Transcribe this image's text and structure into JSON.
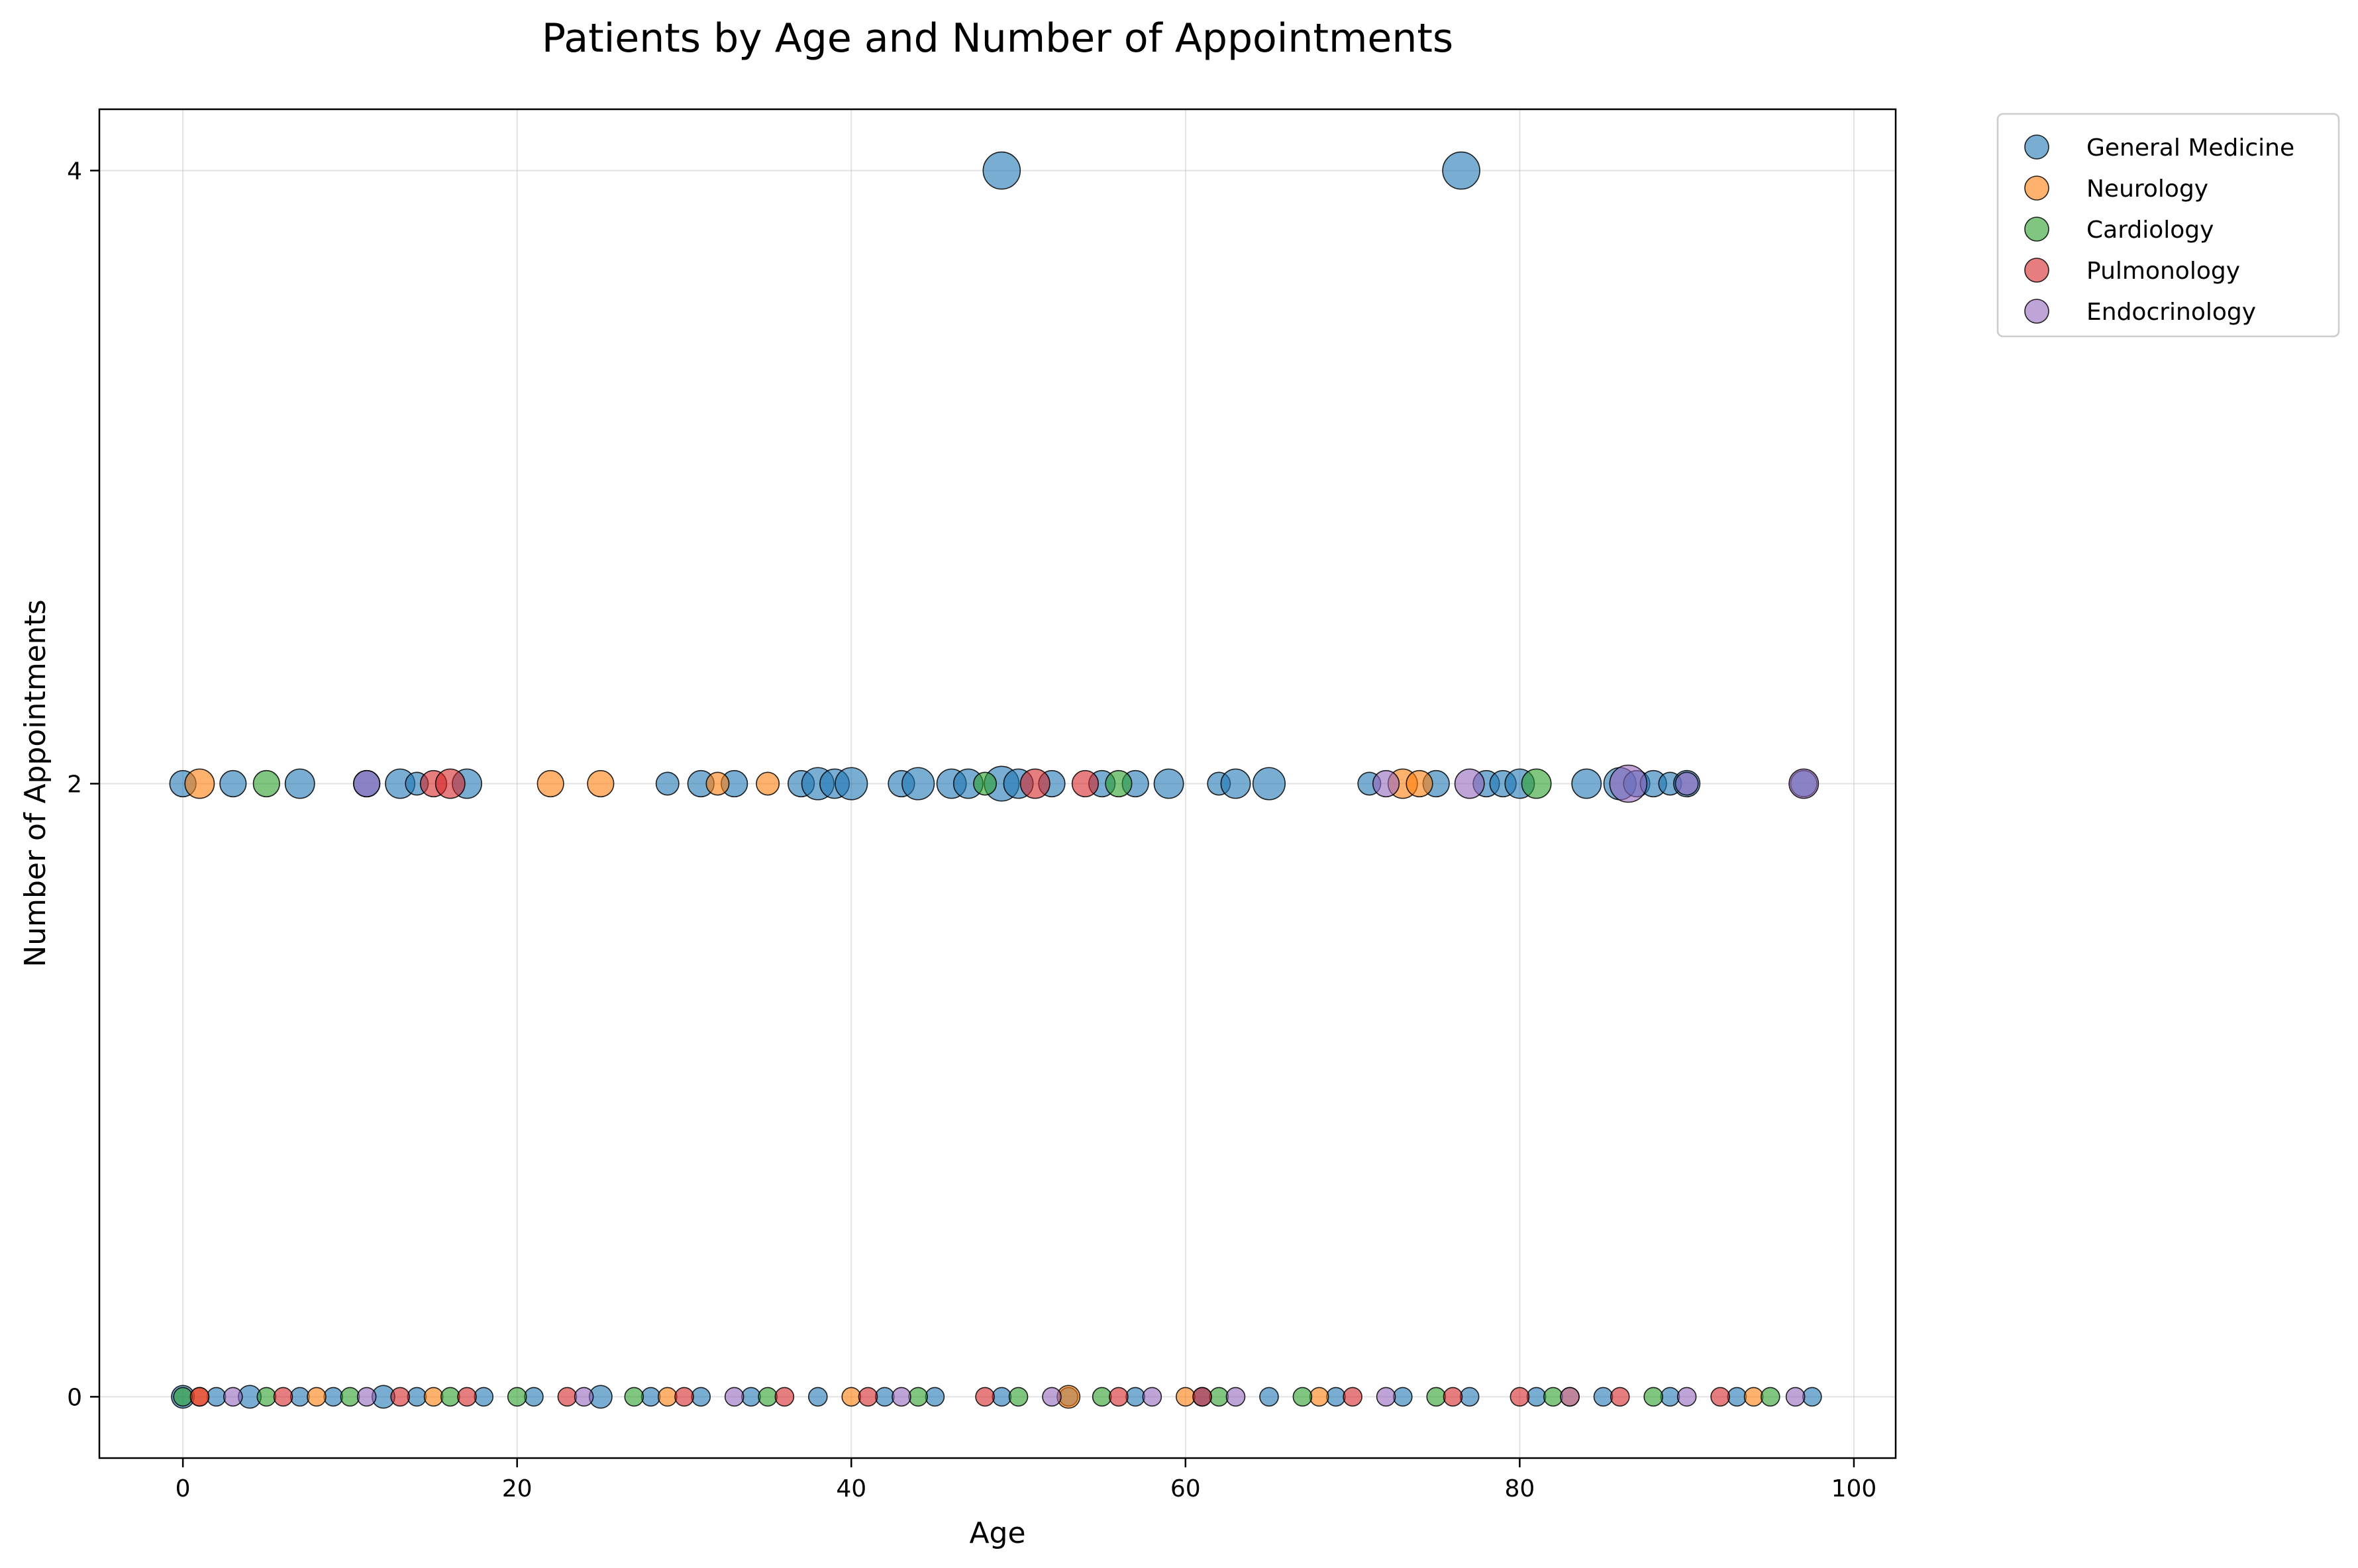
{
  "chart_data": {
    "type": "scatter",
    "title": "Patients by Age and Number of Appointments",
    "xlabel": "Age",
    "ylabel": "Number of Appointments",
    "xlim": [
      -5,
      102.5
    ],
    "ylim": [
      -0.2,
      4.2
    ],
    "xticks": [
      0,
      20,
      40,
      60,
      80,
      100
    ],
    "yticks": [
      0,
      2,
      4
    ],
    "grid": true,
    "legend_position": "outside-top-right",
    "colors": {
      "General Medicine": "#1f77b4",
      "Neurology": "#ff7f0e",
      "Cardiology": "#2ca02c",
      "Pulmonology": "#d62728",
      "Endocrinology": "#9467bd"
    },
    "series": [
      {
        "name": "General Medicine",
        "x": [
          49,
          76.5,
          0,
          3,
          7,
          11,
          13,
          14,
          17,
          29,
          31,
          33,
          37,
          38,
          39,
          40,
          43,
          44,
          46,
          47,
          49,
          50,
          52,
          55,
          57,
          59,
          62,
          63,
          65,
          71,
          75,
          78,
          79,
          80,
          84,
          86,
          87,
          88,
          89,
          90,
          97,
          0,
          2,
          4,
          7,
          9,
          12,
          14,
          18,
          21,
          25,
          28,
          31,
          34,
          38,
          42,
          45,
          49,
          53,
          57,
          61,
          65,
          69,
          73,
          77,
          81,
          85,
          89,
          93,
          97.5
        ],
        "y": [
          4,
          4,
          2,
          2,
          2,
          2,
          2,
          2,
          2,
          2,
          2,
          2,
          2,
          2,
          2,
          2,
          2,
          2,
          2,
          2,
          2,
          2,
          2,
          2,
          2,
          2,
          2,
          2,
          2,
          2,
          2,
          2,
          2,
          2,
          2,
          2,
          2,
          2,
          2,
          2,
          2,
          0,
          0,
          0,
          0,
          0,
          0,
          0,
          0,
          0,
          0,
          0,
          0,
          0,
          0,
          0,
          0,
          0,
          0,
          0,
          0,
          0,
          0,
          0,
          0,
          0,
          0,
          0,
          0,
          0
        ],
        "size": [
          4,
          4,
          2,
          2,
          2.5,
          2,
          2.5,
          1.5,
          2.5,
          1.5,
          2,
          2,
          2,
          3,
          2.5,
          3,
          2,
          3,
          2.5,
          2.5,
          3.5,
          2.5,
          2,
          2,
          2,
          2.5,
          1.5,
          2.5,
          3,
          1.5,
          2,
          2,
          2,
          2.5,
          2.5,
          3,
          2,
          2,
          1.5,
          2,
          2,
          1.5,
          1,
          1.5,
          1,
          1,
          1.5,
          1,
          1,
          1,
          1.5,
          1,
          1,
          1,
          1,
          1,
          1,
          1,
          1,
          1,
          1,
          1,
          1,
          1,
          1,
          1,
          1,
          1,
          1,
          1
        ]
      },
      {
        "name": "Neurology",
        "x": [
          1,
          22,
          25,
          32,
          35,
          73,
          74,
          1,
          8,
          15,
          29,
          40,
          53,
          60,
          68,
          83,
          94
        ],
        "y": [
          2,
          2,
          2,
          2,
          2,
          2,
          2,
          0,
          0,
          0,
          0,
          0,
          0,
          0,
          0,
          0,
          0
        ],
        "size": [
          2.5,
          2,
          2,
          1.5,
          1.5,
          2.5,
          2,
          1,
          1,
          1,
          1,
          1,
          1.5,
          1,
          1,
          1,
          1
        ]
      },
      {
        "name": "Cardiology",
        "x": [
          5,
          48,
          56,
          81,
          0,
          5,
          10,
          16,
          20,
          27,
          35,
          44,
          50,
          55,
          62,
          67,
          75,
          82,
          88,
          95
        ],
        "y": [
          2,
          2,
          2,
          2,
          0,
          0,
          0,
          0,
          0,
          0,
          0,
          0,
          0,
          0,
          0,
          0,
          0,
          0,
          0,
          0
        ],
        "size": [
          2,
          1.5,
          2,
          2.5,
          1,
          1,
          1,
          1,
          1,
          1,
          1,
          1,
          1,
          1,
          1,
          1,
          1,
          1,
          1,
          1
        ]
      },
      {
        "name": "Pulmonology",
        "x": [
          15,
          16,
          51,
          54,
          1,
          6,
          13,
          17,
          23,
          30,
          36,
          41,
          48,
          56,
          61,
          70,
          76,
          80,
          86,
          92
        ],
        "y": [
          2,
          2,
          2,
          2,
          0,
          0,
          0,
          0,
          0,
          0,
          0,
          0,
          0,
          0,
          0,
          0,
          0,
          0,
          0,
          0
        ],
        "size": [
          2,
          2.5,
          2.5,
          2,
          1,
          1,
          1,
          1,
          1,
          1,
          1,
          1,
          1,
          1,
          1,
          1,
          1,
          1,
          1,
          1
        ]
      },
      {
        "name": "Endocrinology",
        "x": [
          11,
          72,
          77,
          86.5,
          90,
          97,
          3,
          11,
          24,
          33,
          43,
          52,
          58,
          63,
          72,
          83,
          90,
          96.5
        ],
        "y": [
          2,
          2,
          2,
          2,
          2,
          2,
          0,
          0,
          0,
          0,
          0,
          0,
          0,
          0,
          0,
          0,
          0,
          0
        ],
        "size": [
          2,
          2,
          2.5,
          4,
          1.5,
          2.5,
          1,
          1,
          1,
          1,
          1,
          1,
          1,
          1,
          1,
          1,
          1,
          1
        ]
      }
    ]
  }
}
